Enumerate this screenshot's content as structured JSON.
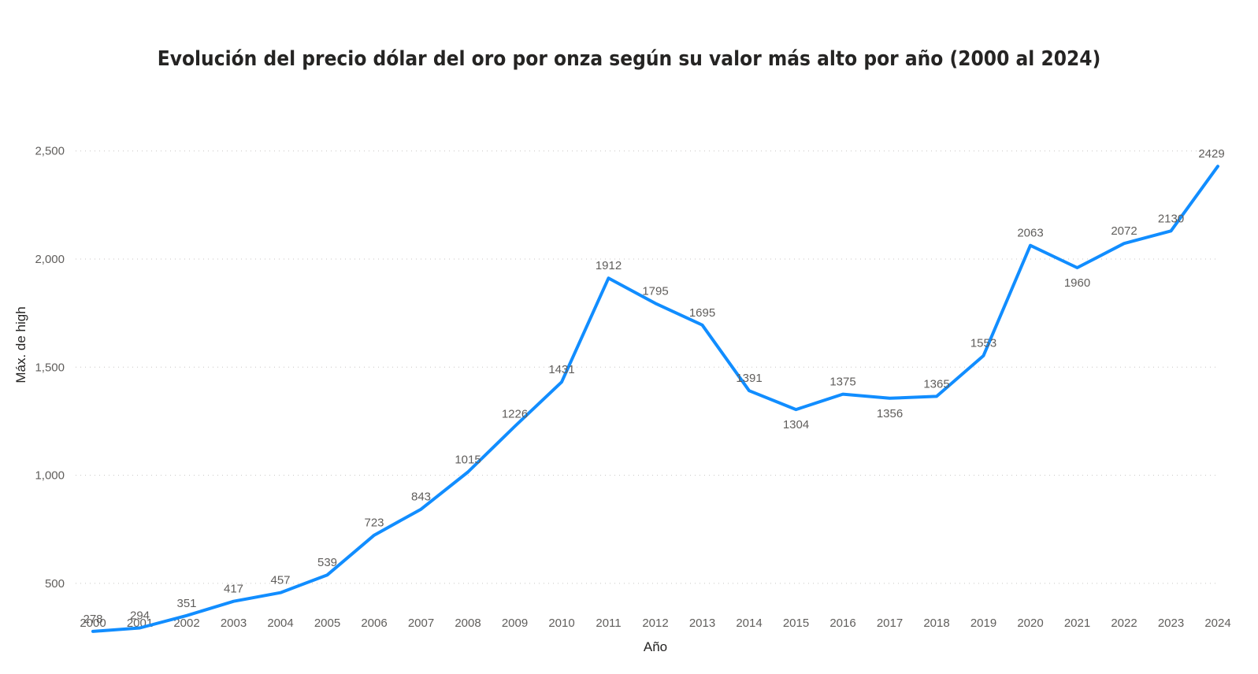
{
  "chart_data": {
    "type": "line",
    "title": "Evolución del precio dólar del oro por onza según su valor más alto por año (2000 al 2024)",
    "xlabel": "Año",
    "ylabel": "Máx. de high",
    "ylim": [
      200,
      2550
    ],
    "yticks": [
      500,
      1000,
      1500,
      2000,
      2500
    ],
    "ytick_labels": [
      "500",
      "1,000",
      "1,500",
      "2,000",
      "2,500"
    ],
    "grid": true,
    "line_color": "#118DFF",
    "x": [
      "2000",
      "2001",
      "2002",
      "2003",
      "2004",
      "2005",
      "2006",
      "2007",
      "2008",
      "2009",
      "2010",
      "2011",
      "2012",
      "2013",
      "2014",
      "2015",
      "2016",
      "2017",
      "2018",
      "2019",
      "2020",
      "2021",
      "2022",
      "2023",
      "2024"
    ],
    "series": [
      {
        "values": [
          278,
          294,
          351,
          417,
          457,
          539,
          723,
          843,
          1015,
          1226,
          1431,
          1912,
          1795,
          1695,
          1391,
          1304,
          1375,
          1356,
          1365,
          1553,
          2063,
          1960,
          2072,
          2130,
          2429
        ]
      }
    ],
    "data_labels": [
      "278",
      "294",
      "351",
      "417",
      "457",
      "539",
      "723",
      "843",
      "1015",
      "1226",
      "1431",
      "1912",
      "1795",
      "1695",
      "1391",
      "1304",
      "1375",
      "1356",
      "1365",
      "1553",
      "2063",
      "1960",
      "2072",
      "2130",
      "2429"
    ],
    "label_positions": [
      "above",
      "above",
      "above",
      "above",
      "above",
      "above",
      "above",
      "above",
      "above",
      "above",
      "above",
      "above",
      "above",
      "above",
      "above",
      "below",
      "above",
      "below",
      "above",
      "above",
      "above",
      "below",
      "above",
      "above",
      "above"
    ]
  }
}
